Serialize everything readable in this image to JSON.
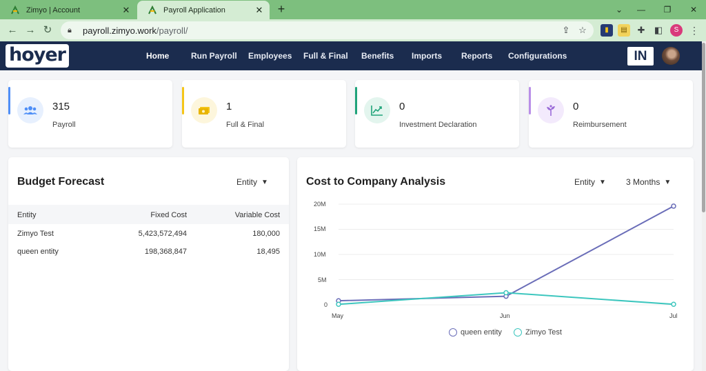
{
  "browser": {
    "tabs": [
      {
        "title": "Zimyo | Account",
        "active": false
      },
      {
        "title": "Payroll Application",
        "active": true
      }
    ],
    "url_host": "payroll.zimyo.work",
    "url_path": "/payroll/",
    "profile_initial": "S"
  },
  "app": {
    "logo_text": "hoyer",
    "nav": [
      "Home",
      "Run Payroll",
      "Employees",
      "Full & Final",
      "Benefits",
      "Imports",
      "Reports",
      "Configurations"
    ],
    "country_badge": "IN"
  },
  "stats": [
    {
      "value": "315",
      "label": "Payroll",
      "color": "#4f8ff7",
      "icon": "users-icon"
    },
    {
      "value": "1",
      "label": "Full & Final",
      "color": "#f5c518",
      "icon": "cash-icon"
    },
    {
      "value": "0",
      "label": "Investment Declaration",
      "color": "#1fa37a",
      "icon": "trend-up-icon"
    },
    {
      "value": "0",
      "label": "Reimbursement",
      "color": "#b98ee8",
      "icon": "plant-icon"
    }
  ],
  "budget": {
    "title": "Budget Forecast",
    "filter": "Entity",
    "columns": [
      "Entity",
      "Fixed Cost",
      "Variable Cost"
    ],
    "rows": [
      [
        "Zimyo Test",
        "5,423,572,494",
        "180,000"
      ],
      [
        "queen entity",
        "198,368,847",
        "18,495"
      ]
    ]
  },
  "ctc": {
    "title": "Cost to Company Analysis",
    "filter_entity": "Entity",
    "filter_period": "3 Months"
  },
  "chart_data": {
    "type": "line",
    "categories": [
      "May",
      "Jun",
      "Jul"
    ],
    "yticks": [
      "20M",
      "15M",
      "10M",
      "5M",
      "0"
    ],
    "ylim": [
      0,
      20000000
    ],
    "series": [
      {
        "name": "queen entity",
        "color": "#6a6db8",
        "values": [
          800000,
          1700000,
          19600000
        ]
      },
      {
        "name": "Zimyo Test",
        "color": "#3cc6be",
        "values": [
          100000,
          2400000,
          100000
        ]
      }
    ]
  }
}
